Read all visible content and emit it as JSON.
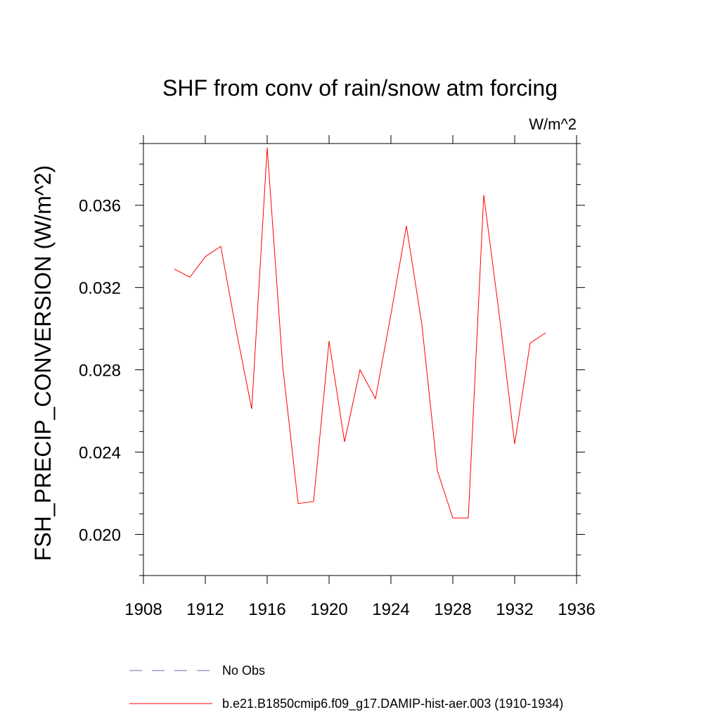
{
  "chart_data": {
    "type": "line",
    "title": "SHF from conv of rain/snow atm forcing",
    "units": "W/m^2",
    "ylabel": "FSH_PRECIP_CONVERSION  (W/m^2)",
    "xlabel": "",
    "xlim": [
      1908,
      1936
    ],
    "ylim": [
      0.018,
      0.039
    ],
    "x_ticks": [
      1908,
      1912,
      1916,
      1920,
      1924,
      1928,
      1932,
      1936
    ],
    "x_tick_labels": [
      "1908",
      "1912",
      "1916",
      "1920",
      "1924",
      "1928",
      "1932",
      "1936"
    ],
    "y_ticks": [
      0.02,
      0.024,
      0.028,
      0.032,
      0.036
    ],
    "y_tick_labels": [
      "0.020",
      "0.024",
      "0.028",
      "0.032",
      "0.036"
    ],
    "grid": false,
    "legend_position": "bottom",
    "series": [
      {
        "name": "b.e21.B1850cmip6.f09_g17.DAMIP-hist-aer.003 (1910-1934)",
        "color": "#ff0000",
        "style": "solid",
        "x": [
          1910,
          1911,
          1912,
          1913,
          1914,
          1915,
          1916,
          1917,
          1918,
          1919,
          1920,
          1921,
          1922,
          1923,
          1924,
          1925,
          1926,
          1927,
          1928,
          1929,
          1930,
          1931,
          1932,
          1933,
          1934
        ],
        "y": [
          0.0329,
          0.0325,
          0.0335,
          0.034,
          0.0299,
          0.0261,
          0.0388,
          0.0282,
          0.0215,
          0.0216,
          0.0294,
          0.0245,
          0.028,
          0.0266,
          0.0307,
          0.035,
          0.0302,
          0.0231,
          0.0208,
          0.0208,
          0.0365,
          0.0307,
          0.0244,
          0.0293,
          0.0298
        ]
      }
    ],
    "legend": [
      {
        "label": "No Obs",
        "color": "#6a6ab0",
        "style": "dashed"
      },
      {
        "label": "b.e21.B1850cmip6.f09_g17.DAMIP-hist-aer.003 (1910-1934)",
        "color": "#ff0000",
        "style": "solid"
      }
    ]
  }
}
